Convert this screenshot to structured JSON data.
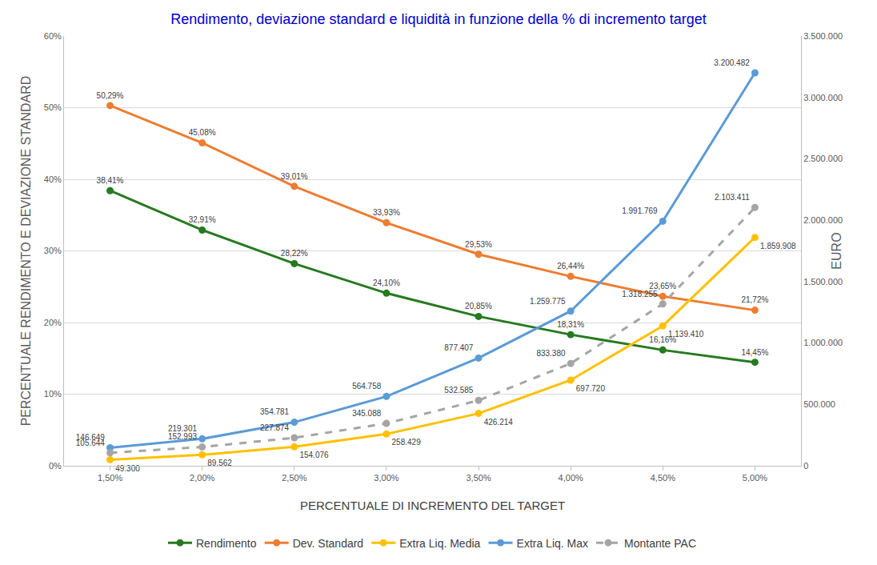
{
  "chart_data": {
    "type": "line",
    "title": "Rendimento, deviazione standard e liquidità in funzione della % di incremento target",
    "x_label": "PERCENTUALE DI INCREMENTO DEL TARGET",
    "y_label": "PERCENTUALE RENDIMENTO E DEVIAZIONE STANDARD",
    "y2_label": "EURO",
    "categories": [
      "1,50%",
      "2,00%",
      "2,50%",
      "3,00%",
      "3,50%",
      "4,00%",
      "4,50%",
      "5,00%"
    ],
    "ylim": [
      0,
      60
    ],
    "yticks": [
      {
        "value": 0,
        "label": "0%"
      },
      {
        "value": 10,
        "label": "10%"
      },
      {
        "value": 20,
        "label": "20%"
      },
      {
        "value": 30,
        "label": "30%"
      },
      {
        "value": 40,
        "label": "40%"
      },
      {
        "value": 50,
        "label": "50%"
      },
      {
        "value": 60,
        "label": "60%"
      }
    ],
    "y2lim": [
      0,
      3500000
    ],
    "y2ticks": [
      0,
      {
        "value": 500000,
        "label": "500.000"
      },
      {
        "value": 1000000,
        "label": "1.000.000"
      },
      {
        "value": 1500000,
        "label": "1.500.000"
      },
      {
        "value": 2000000,
        "label": "2.000.000"
      },
      {
        "value": 2500000,
        "label": "2.500.000"
      },
      {
        "value": 3000000,
        "label": "3.000.000"
      },
      {
        "value": 3500000,
        "label": "3.500.000"
      }
    ],
    "grid": true,
    "legend": "bottom",
    "data_labels": true,
    "marker": "circle",
    "series": [
      {
        "name": "Rendimento",
        "color": "#267a1f",
        "axis": "y",
        "line_style": "solid",
        "values": [
          38.41,
          32.91,
          28.22,
          24.1,
          20.85,
          18.31,
          16.16,
          14.45
        ],
        "value_labels": [
          "38,41%",
          "32,91%",
          "28,22%",
          "24,10%",
          "20,85%",
          "18,31%",
          "16,16%",
          "14,45%"
        ]
      },
      {
        "name": "Dev. Standard",
        "color": "#ed7d31",
        "axis": "y",
        "line_style": "solid",
        "values": [
          50.29,
          45.08,
          39.01,
          33.93,
          29.53,
          26.44,
          23.65,
          21.72
        ],
        "value_labels": [
          "50,29%",
          "45,08%",
          "39,01%",
          "33,93%",
          "29,53%",
          "26,44%",
          "23,65%",
          "21,72%"
        ]
      },
      {
        "name": "Extra Liq. Media",
        "color": "#ffc000",
        "axis": "y2",
        "line_style": "solid",
        "values": [
          49300,
          89562,
          154076,
          258429,
          426214,
          697720,
          1139410,
          1859908
        ],
        "value_labels": [
          "49.300",
          "89.562",
          "154.076",
          "258.429",
          "426.214",
          "697.720",
          "1.139.410",
          "1.859.908"
        ]
      },
      {
        "name": "Extra Liq. Max",
        "color": "#5b9bd5",
        "axis": "y2",
        "line_style": "solid",
        "values": [
          146649,
          219301,
          354781,
          564758,
          877407,
          1259775,
          1991769,
          3200482
        ],
        "value_labels": [
          "146.649",
          "219.301",
          "354.781",
          "564.758",
          "877.407",
          "1.259.775",
          "1.991.769",
          "3.200.482"
        ]
      },
      {
        "name": "Montante PAC",
        "color": "#a5a5a5",
        "axis": "y2",
        "line_style": "dash",
        "values": [
          105644,
          152993,
          227874,
          345088,
          532585,
          833380,
          1318255,
          2103411
        ],
        "value_labels": [
          "105.644",
          "152.993",
          "227.874",
          "345.088",
          "532.585",
          "833.380",
          "1.318.255",
          "2.103.411"
        ]
      }
    ]
  }
}
